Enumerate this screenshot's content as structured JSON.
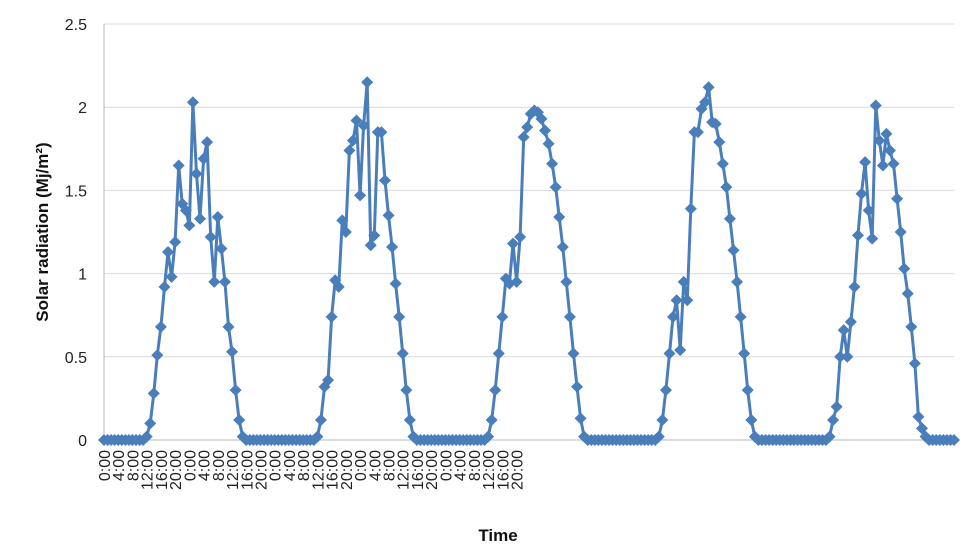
{
  "chart_data": {
    "type": "line",
    "title": "",
    "xlabel": "Time",
    "ylabel": "Solar radiation (Mj/m²)",
    "ylim": [
      0,
      2.5
    ],
    "yticks": [
      "0",
      "0.5",
      "1",
      "1.5",
      "2",
      "2.5"
    ],
    "xtick_labels": [
      "0:00",
      "4:00",
      "8:00",
      "12:00",
      "16:00",
      "20:00",
      "0:00",
      "4:00",
      "8:00",
      "12:00",
      "16:00",
      "20:00",
      "0:00",
      "4:00",
      "8:00",
      "12:00",
      "16:00",
      "20:00",
      "0:00",
      "4:00",
      "8:00",
      "12:00",
      "16:00",
      "20:00",
      "0:00",
      "4:00",
      "8:00",
      "12:00",
      "16:00",
      "20:00"
    ],
    "grid": true,
    "marker": "diamond",
    "color": "#4a7ebb",
    "series": [
      {
        "values": [
          0,
          0,
          0,
          0,
          0,
          0,
          0,
          0,
          0,
          0,
          0,
          0,
          0.02,
          0.1,
          0.28,
          0.51,
          0.68,
          0.92,
          1.13,
          0.98,
          1.19,
          1.65,
          1.42,
          1.38,
          1.29,
          2.03,
          1.6,
          1.33,
          1.69,
          1.79,
          1.22,
          0.95,
          1.34,
          1.15,
          0.95,
          0.68,
          0.53,
          0.3,
          0.12,
          0.02,
          0,
          0,
          0,
          0,
          0,
          0,
          0,
          0,
          0,
          0,
          0,
          0,
          0,
          0,
          0,
          0,
          0,
          0,
          0,
          0,
          0.02,
          0.12,
          0.32,
          0.36,
          0.74,
          0.96,
          0.92,
          1.32,
          1.25,
          1.74,
          1.8,
          1.92,
          1.47,
          1.89,
          2.15,
          1.17,
          1.23,
          1.85,
          1.85,
          1.56,
          1.35,
          1.16,
          0.94,
          0.74,
          0.52,
          0.3,
          0.12,
          0.02,
          0,
          0,
          0,
          0,
          0,
          0,
          0,
          0,
          0,
          0,
          0,
          0,
          0,
          0,
          0,
          0,
          0,
          0,
          0,
          0,
          0.02,
          0.12,
          0.3,
          0.52,
          0.74,
          0.97,
          0.94,
          1.18,
          0.95,
          1.22,
          1.82,
          1.88,
          1.96,
          1.98,
          1.97,
          1.93,
          1.86,
          1.78,
          1.66,
          1.52,
          1.34,
          1.16,
          0.95,
          0.74,
          0.52,
          0.32,
          0.13,
          0.02,
          0,
          0,
          0,
          0,
          0,
          0,
          0,
          0,
          0,
          0,
          0,
          0,
          0,
          0,
          0,
          0,
          0,
          0,
          0,
          0,
          0.02,
          0.12,
          0.3,
          0.52,
          0.74,
          0.84,
          0.54,
          0.95,
          0.84,
          1.39,
          1.85,
          1.85,
          1.99,
          2.03,
          2.12,
          1.91,
          1.9,
          1.79,
          1.66,
          1.52,
          1.33,
          1.14,
          0.95,
          0.74,
          0.52,
          0.3,
          0.12,
          0.02,
          0,
          0,
          0,
          0,
          0,
          0,
          0,
          0,
          0,
          0,
          0,
          0,
          0,
          0,
          0,
          0,
          0,
          0,
          0,
          0,
          0.02,
          0.12,
          0.2,
          0.5,
          0.66,
          0.5,
          0.71,
          0.92,
          1.23,
          1.48,
          1.67,
          1.38,
          1.21,
          2.01,
          1.8,
          1.65,
          1.84,
          1.74,
          1.66,
          1.45,
          1.25,
          1.03,
          0.88,
          0.68,
          0.46,
          0.14,
          0.07,
          0.02,
          0,
          0,
          0,
          0,
          0,
          0,
          0,
          0
        ]
      }
    ]
  }
}
